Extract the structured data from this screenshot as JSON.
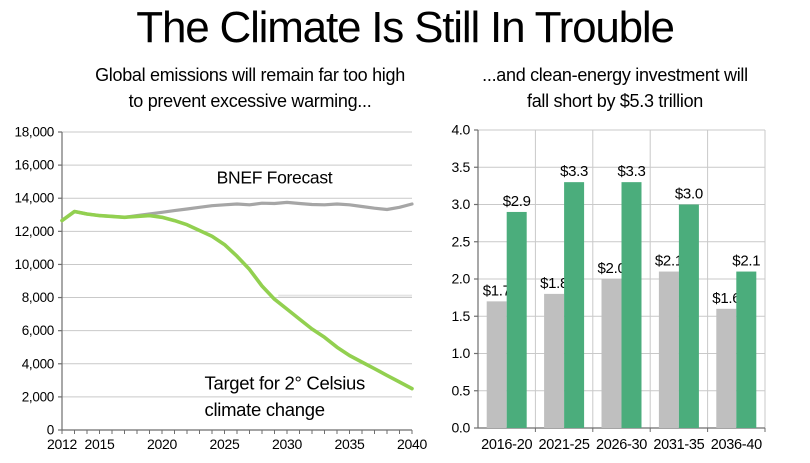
{
  "title": "The Climate Is Still In Trouble",
  "left_chart": {
    "subtitle": [
      "Global emissions will remain far too high",
      "to prevent excessive warming..."
    ]
  },
  "right_chart": {
    "subtitle": [
      "...and clean-energy investment will",
      "fall short by $5.3 trillion"
    ]
  },
  "chart_data": [
    {
      "type": "line",
      "title": "Global emissions will remain far too high to prevent excessive warming...",
      "xlabel": "",
      "ylabel": "",
      "xlim": [
        2012,
        2040
      ],
      "ylim": [
        0,
        18000
      ],
      "ytick_step": 2000,
      "ytick_format": "thousands-comma",
      "xticks": [
        2012,
        2015,
        2020,
        2025,
        2030,
        2035,
        2040
      ],
      "minor_xticks_every": 1,
      "grid": true,
      "grid_color": "#C9C9C9",
      "axis_color": "#6E6E6E",
      "legend_position": "annotations-on-chart",
      "x": [
        2012,
        2013,
        2014,
        2015,
        2016,
        2017,
        2018,
        2019,
        2020,
        2021,
        2022,
        2023,
        2024,
        2025,
        2026,
        2027,
        2028,
        2029,
        2030,
        2031,
        2032,
        2033,
        2034,
        2035,
        2036,
        2037,
        2038,
        2039,
        2040
      ],
      "series": [
        {
          "name": "BNEF Forecast",
          "color": "#A6A6A6",
          "width": 3.2,
          "values": [
            12650,
            13200,
            13050,
            12950,
            12900,
            12850,
            12950,
            13050,
            13150,
            13250,
            13350,
            13450,
            13550,
            13600,
            13650,
            13600,
            13700,
            13680,
            13750,
            13680,
            13620,
            13600,
            13650,
            13600,
            13500,
            13400,
            13320,
            13450,
            13650
          ]
        },
        {
          "name": "Target for 2° Celsius climate change",
          "color": "#92D050",
          "width": 3.6,
          "values": [
            12650,
            13200,
            13050,
            12950,
            12900,
            12850,
            12900,
            12950,
            12850,
            12650,
            12400,
            12050,
            11700,
            11200,
            10500,
            9700,
            8700,
            7900,
            7300,
            6700,
            6100,
            5600,
            5000,
            4500,
            4100,
            3700,
            3300,
            2900,
            2500
          ]
        }
      ],
      "annotations": [
        {
          "text": "BNEF Forecast",
          "x": 2029,
          "y": 14900,
          "anchor": "middle",
          "color": "#B7B7B7",
          "size": 17.5
        },
        {
          "text": "Target for 2° Celsius",
          "x": 2023.4,
          "y": 2450,
          "anchor": "start",
          "color": "#4DAE7D",
          "size": 18.5
        },
        {
          "text": "climate change",
          "x": 2023.4,
          "y": 850,
          "anchor": "start",
          "color": "#4DAE7D",
          "size": 18.5
        }
      ],
      "faint_artifact_line": {
        "y": 8120,
        "x_start": 2029.3,
        "x_end": 2040,
        "color": "#E4E4E4",
        "width": 2
      }
    },
    {
      "type": "bar",
      "title": "...and clean-energy investment will fall short by $5.3 trillion",
      "xlabel": "",
      "ylabel": "",
      "ylim": [
        0,
        4.0
      ],
      "ytick_step": 0.5,
      "ytick_format": "one-decimal",
      "grid": true,
      "grid_color": "#C9C9C9",
      "axis_color": "#6E6E6E",
      "category_divider_lines": true,
      "categories": [
        "2016-20",
        "2021-25",
        "2026-30",
        "2031-35",
        "2036-40"
      ],
      "series": [
        {
          "name": "gray",
          "color": "#BFBFBF",
          "values": [
            1.7,
            1.8,
            2.0,
            2.1,
            1.6
          ],
          "labels": [
            "$1.7",
            "$1.8",
            "$2.0",
            "$2.1",
            "$1.6"
          ]
        },
        {
          "name": "green",
          "color": "#4BAD7C",
          "values": [
            2.9,
            3.3,
            3.3,
            3.0,
            2.1
          ],
          "labels": [
            "$2.9",
            "$3.3",
            "$3.3",
            "$3.0",
            "$2.1"
          ]
        }
      ]
    }
  ]
}
